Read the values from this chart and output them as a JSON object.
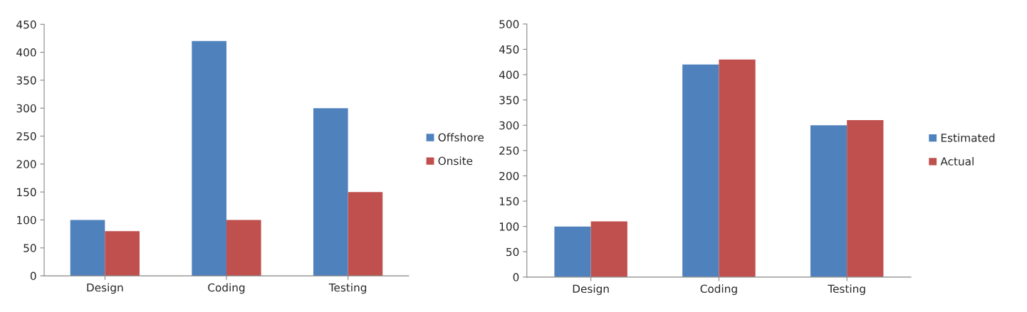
{
  "chart_data": [
    {
      "type": "bar",
      "categories": [
        "Design",
        "Coding",
        "Testing"
      ],
      "series": [
        {
          "name": "Offshore",
          "color": "#4f81bd",
          "values": [
            100,
            420,
            300
          ]
        },
        {
          "name": "Onsite",
          "color": "#c0504d",
          "values": [
            80,
            100,
            150
          ]
        }
      ],
      "ylim": [
        0,
        450
      ],
      "yticks": [
        0,
        50,
        100,
        150,
        200,
        250,
        300,
        350,
        400,
        450
      ],
      "grid": false,
      "legend": "right"
    },
    {
      "type": "bar",
      "categories": [
        "Design",
        "Coding",
        "Testing"
      ],
      "series": [
        {
          "name": "Estimated",
          "color": "#4f81bd",
          "values": [
            100,
            420,
            300
          ]
        },
        {
          "name": "Actual",
          "color": "#c0504d",
          "values": [
            110,
            430,
            310
          ]
        }
      ],
      "ylim": [
        0,
        500
      ],
      "yticks": [
        0,
        50,
        100,
        150,
        200,
        250,
        300,
        350,
        400,
        450,
        500
      ],
      "grid": false,
      "legend": "right"
    }
  ]
}
